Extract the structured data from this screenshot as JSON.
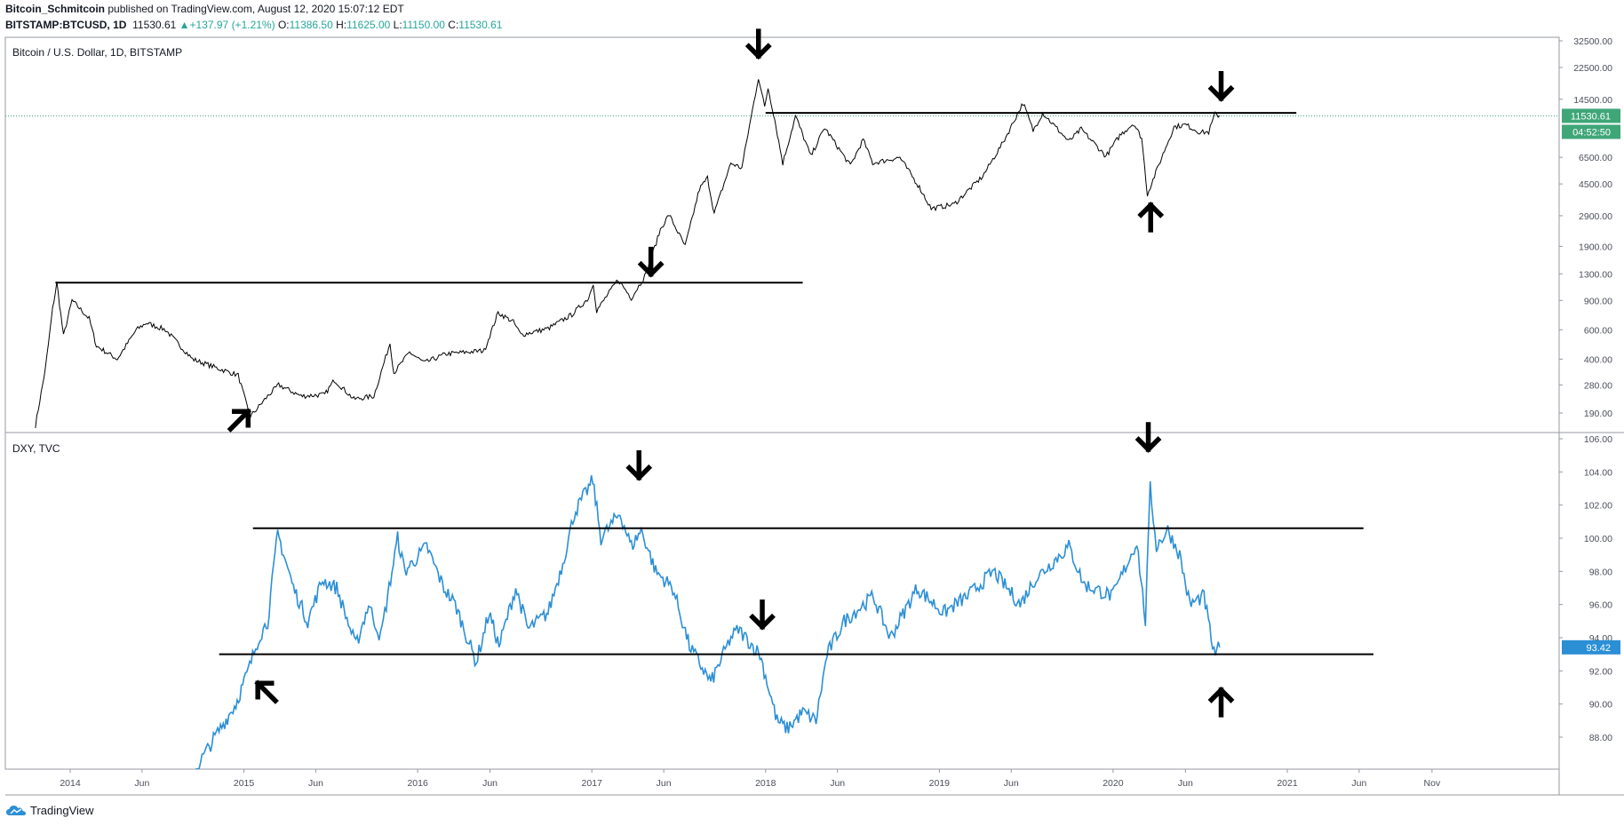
{
  "header": {
    "author": "Bitcoin_Schmitcoin",
    "published_text": " published on TradingView.com, August 12, 2020 15:07:12 EDT",
    "symbol": "BITSTAMP:BTCUSD, 1D",
    "last": "11530.61",
    "change": "▲+137.97 (+1.21%)",
    "o_label": "O:",
    "o": "11386.50",
    "h_label": "H:",
    "h": "11625.00",
    "l_label": "L:",
    "l": "11150.00",
    "c_label": "C:",
    "c": "11530.61"
  },
  "footer": {
    "brand": "TradingView"
  },
  "colors": {
    "btc_line": "#000000",
    "dxy_line": "#2b8fd6",
    "tag_green": "#3fa678",
    "tag_blue": "#2b8fd6",
    "border": "#9598a1"
  },
  "chart_data": [
    {
      "type": "line",
      "title": "Bitcoin / U.S. Dollar, 1D, BITSTAMP",
      "scale": "log",
      "ylim": [
        160,
        32500
      ],
      "y_ticks": [
        32500,
        22500,
        14500,
        6500,
        4500,
        2900,
        1900,
        1300,
        900,
        600,
        400,
        280,
        190
      ],
      "x_ticks": [
        "2014",
        "Jun",
        "2015",
        "Jun",
        "2016",
        "Jun",
        "2017",
        "Jun",
        "2018",
        "Jun",
        "2019",
        "Jun",
        "2020",
        "Jun",
        "2021",
        "Jun",
        "Nov"
      ],
      "last_price": "11530.61",
      "countdown": "04:52:50",
      "series": [
        {
          "values": [
            [
              "2013-10-20",
              160
            ],
            [
              "2013-11-10",
              350
            ],
            [
              "2013-11-25",
              800
            ],
            [
              "2013-12-04",
              1150
            ],
            [
              "2013-12-18",
              550
            ],
            [
              "2014-01-05",
              900
            ],
            [
              "2014-02-10",
              700
            ],
            [
              "2014-02-25",
              480
            ],
            [
              "2014-04-10",
              400
            ],
            [
              "2014-05-20",
              600
            ],
            [
              "2014-06-10",
              660
            ],
            [
              "2014-07-20",
              600
            ],
            [
              "2014-09-15",
              400
            ],
            [
              "2014-11-10",
              350
            ],
            [
              "2014-12-20",
              320
            ],
            [
              "2015-01-14",
              180
            ],
            [
              "2015-02-20",
              240
            ],
            [
              "2015-03-15",
              280
            ],
            [
              "2015-05-01",
              240
            ],
            [
              "2015-06-20",
              245
            ],
            [
              "2015-07-10",
              300
            ],
            [
              "2015-08-20",
              230
            ],
            [
              "2015-10-01",
              240
            ],
            [
              "2015-11-04",
              500
            ],
            [
              "2015-11-12",
              330
            ],
            [
              "2015-12-15",
              440
            ],
            [
              "2016-01-15",
              380
            ],
            [
              "2016-03-01",
              430
            ],
            [
              "2016-05-20",
              450
            ],
            [
              "2016-06-18",
              760
            ],
            [
              "2016-07-20",
              670
            ],
            [
              "2016-08-05",
              560
            ],
            [
              "2016-10-01",
              610
            ],
            [
              "2016-11-20",
              740
            ],
            [
              "2016-12-25",
              930
            ],
            [
              "2017-01-04",
              1150
            ],
            [
              "2017-01-11",
              780
            ],
            [
              "2017-02-25",
              1200
            ],
            [
              "2017-03-25",
              930
            ],
            [
              "2017-04-25",
              1300
            ],
            [
              "2017-05-25",
              2400
            ],
            [
              "2017-06-12",
              2950
            ],
            [
              "2017-07-16",
              1900
            ],
            [
              "2017-08-15",
              4200
            ],
            [
              "2017-09-01",
              4900
            ],
            [
              "2017-09-15",
              3000
            ],
            [
              "2017-10-20",
              6000
            ],
            [
              "2017-11-12",
              5600
            ],
            [
              "2017-11-28",
              10000
            ],
            [
              "2017-12-17",
              19600
            ],
            [
              "2017-12-30",
              13000
            ],
            [
              "2018-01-06",
              17000
            ],
            [
              "2018-01-20",
              11000
            ],
            [
              "2018-02-06",
              6000
            ],
            [
              "2018-03-05",
              11500
            ],
            [
              "2018-04-06",
              6600
            ],
            [
              "2018-05-05",
              9800
            ],
            [
              "2018-06-28",
              5800
            ],
            [
              "2018-07-25",
              8300
            ],
            [
              "2018-08-14",
              6000
            ],
            [
              "2018-10-10",
              6500
            ],
            [
              "2018-11-20",
              4300
            ],
            [
              "2018-12-15",
              3200
            ],
            [
              "2019-02-01",
              3400
            ],
            [
              "2019-04-02",
              5000
            ],
            [
              "2019-05-15",
              8000
            ],
            [
              "2019-06-26",
              13800
            ],
            [
              "2019-07-17",
              9400
            ],
            [
              "2019-08-06",
              12000
            ],
            [
              "2019-09-30",
              8100
            ],
            [
              "2019-10-26",
              9600
            ],
            [
              "2019-12-17",
              6600
            ],
            [
              "2020-01-15",
              8800
            ],
            [
              "2020-02-13",
              10400
            ],
            [
              "2020-03-01",
              8500
            ],
            [
              "2020-03-13",
              3900
            ],
            [
              "2020-04-15",
              6800
            ],
            [
              "2020-05-08",
              9900
            ],
            [
              "2020-06-01",
              10200
            ],
            [
              "2020-07-01",
              9200
            ],
            [
              "2020-07-20",
              9200
            ],
            [
              "2020-08-02",
              11800
            ],
            [
              "2020-08-12",
              11530
            ]
          ]
        }
      ],
      "annotations": {
        "horizontal_lines": [
          {
            "price": 1150,
            "from": "2013-12-01",
            "to": "2018-03-20"
          },
          {
            "price": 12000,
            "from": "2018-01-01",
            "to": "2021-01-20"
          }
        ],
        "arrows": [
          {
            "date": "2017-12-17",
            "price": 30500,
            "dir": "down"
          },
          {
            "date": "2017-05-05",
            "price": 1500,
            "dir": "down"
          },
          {
            "date": "2020-08-15",
            "price": 17000,
            "dir": "down"
          },
          {
            "date": "2020-03-20",
            "price": 2900,
            "dir": "up"
          },
          {
            "date": "2014-12-25",
            "price": 175,
            "dir": "up-right"
          }
        ]
      }
    },
    {
      "type": "line",
      "title": "DXY, TVC",
      "ylim": [
        86,
        106
      ],
      "y_ticks": [
        106,
        104,
        102,
        100,
        98,
        96,
        94,
        92,
        90,
        88
      ],
      "last_price": "93.42",
      "series": [
        {
          "values": [
            [
              "2014-09-20",
              86
            ],
            [
              "2014-11-01",
              88
            ],
            [
              "2014-12-15",
              90
            ],
            [
              "2015-01-10",
              92
            ],
            [
              "2015-02-01",
              94
            ],
            [
              "2015-02-20",
              95
            ],
            [
              "2015-03-13",
              100.3
            ],
            [
              "2015-04-15",
              97
            ],
            [
              "2015-05-15",
              95
            ],
            [
              "2015-06-15",
              97.5
            ],
            [
              "2015-07-15",
              97
            ],
            [
              "2015-08-24",
              93.5
            ],
            [
              "2015-09-20",
              96
            ],
            [
              "2015-10-15",
              94
            ],
            [
              "2015-11-20",
              100
            ],
            [
              "2015-12-05",
              98
            ],
            [
              "2016-01-20",
              99.5
            ],
            [
              "2016-02-25",
              97
            ],
            [
              "2016-03-20",
              96
            ],
            [
              "2016-05-03",
              92.5
            ],
            [
              "2016-05-30",
              95.5
            ],
            [
              "2016-06-20",
              93.5
            ],
            [
              "2016-07-25",
              97
            ],
            [
              "2016-08-20",
              94.5
            ],
            [
              "2016-10-01",
              95.5
            ],
            [
              "2016-11-01",
              98.5
            ],
            [
              "2016-11-25",
              101.5
            ],
            [
              "2017-01-03",
              103.5
            ],
            [
              "2017-01-20",
              100
            ],
            [
              "2017-03-01",
              101.5
            ],
            [
              "2017-03-25",
              99.5
            ],
            [
              "2017-04-15",
              100.5
            ],
            [
              "2017-05-15",
              98
            ],
            [
              "2017-06-20",
              97
            ],
            [
              "2017-07-25",
              93.5
            ],
            [
              "2017-09-08",
              91.3
            ],
            [
              "2017-10-20",
              94
            ],
            [
              "2017-11-05",
              94.5
            ],
            [
              "2017-12-20",
              93
            ],
            [
              "2018-01-25",
              89
            ],
            [
              "2018-02-15",
              88.5
            ],
            [
              "2018-03-20",
              89.5
            ],
            [
              "2018-04-17",
              89
            ],
            [
              "2018-05-10",
              93
            ],
            [
              "2018-06-15",
              95
            ],
            [
              "2018-08-15",
              96.5
            ],
            [
              "2018-09-20",
              94
            ],
            [
              "2018-11-15",
              97
            ],
            [
              "2019-01-10",
              95.5
            ],
            [
              "2019-03-01",
              96.5
            ],
            [
              "2019-04-25",
              98
            ],
            [
              "2019-06-20",
              96
            ],
            [
              "2019-07-20",
              97.5
            ],
            [
              "2019-09-30",
              99.5
            ],
            [
              "2019-11-01",
              97.2
            ],
            [
              "2019-12-31",
              96.5
            ],
            [
              "2020-02-20",
              99.8
            ],
            [
              "2020-03-09",
              95
            ],
            [
              "2020-03-19",
              103
            ],
            [
              "2020-04-01",
              99.5
            ],
            [
              "2020-04-25",
              100.5
            ],
            [
              "2020-05-20",
              99
            ],
            [
              "2020-06-10",
              96
            ],
            [
              "2020-07-10",
              96.5
            ],
            [
              "2020-07-31",
              93
            ],
            [
              "2020-08-12",
              93.42
            ]
          ]
        }
      ],
      "annotations": {
        "horizontal_lines": [
          {
            "price": 100.6,
            "from": "2015-01-20",
            "to": "2021-06-10"
          },
          {
            "price": 93.0,
            "from": "2014-11-10",
            "to": "2021-07-01"
          }
        ],
        "arrows": [
          {
            "date": "2017-04-10",
            "price": 104.3,
            "dir": "down"
          },
          {
            "date": "2017-12-25",
            "price": 95.3,
            "dir": "down"
          },
          {
            "date": "2020-03-15",
            "price": 106,
            "dir": "down"
          },
          {
            "date": "2015-02-15",
            "price": 90.8,
            "dir": "up-left"
          },
          {
            "date": "2020-08-15",
            "price": 90.2,
            "dir": "up"
          }
        ]
      }
    }
  ]
}
